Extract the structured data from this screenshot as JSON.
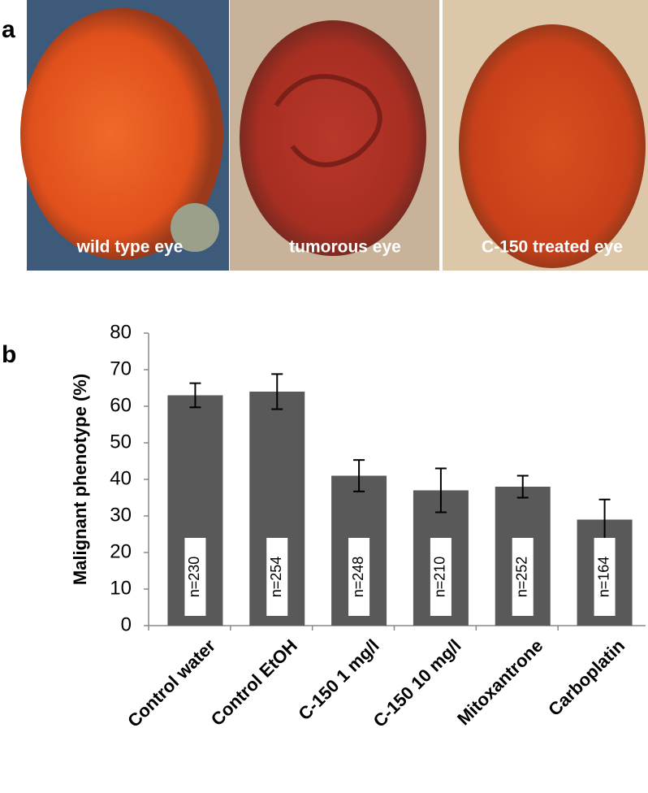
{
  "panel_a": {
    "label": "a",
    "captions": [
      "wild type eye",
      "tumorous eye",
      "C-150 treated eye"
    ]
  },
  "panel_b": {
    "label": "b"
  },
  "chart_data": {
    "type": "bar",
    "y_label": "Malignant phenotype  (%)",
    "categories": [
      "Control water",
      "Control EtOH",
      "C-150  1 mg/l",
      "C-150  10 mg/l",
      "Mitoxantrone",
      "Carboplatin"
    ],
    "values": [
      63,
      64,
      41,
      37,
      38,
      29
    ],
    "errors": [
      3.3,
      4.8,
      4.3,
      6,
      3,
      5.5
    ],
    "annotations": [
      "n=230",
      "n=254",
      "n=248",
      "n=210",
      "n=252",
      "n=164"
    ],
    "color": "#595959",
    "ylim": [
      0,
      80
    ],
    "yticks": [
      0,
      10,
      20,
      30,
      40,
      50,
      60,
      70,
      80
    ],
    "grid": false
  }
}
